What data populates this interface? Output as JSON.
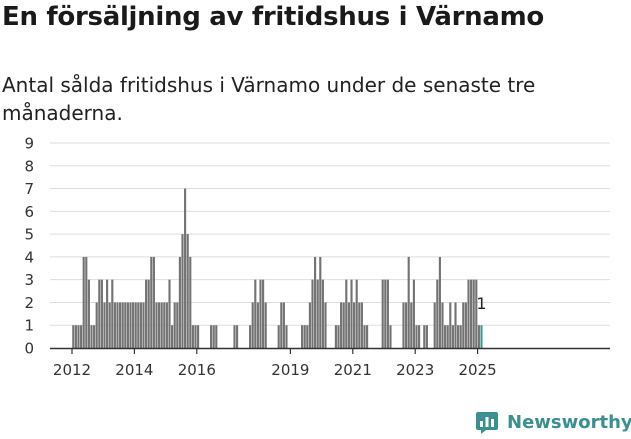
{
  "header": {
    "title": "En försäljning av fritidshus i Värnamo",
    "subtitle": "Antal sålda fritidshus i Värnamo under de senaste tre månaderna."
  },
  "brand": {
    "name": "Newsworthy",
    "logo_icon": "newsworthy-bar-chart-logo-icon"
  },
  "colors": {
    "bar": "#737373",
    "highlight": "#3a9b98",
    "grid": "#dddddd",
    "axis": "#333333",
    "brand": "#3a8f8f"
  },
  "chart_data": {
    "type": "bar",
    "title": "",
    "xlabel": "",
    "ylabel": "",
    "ylim": [
      0,
      9
    ],
    "y_ticks": [
      "0",
      "1",
      "2",
      "3",
      "4",
      "5",
      "6",
      "7",
      "8",
      "9"
    ],
    "x_ticks": [
      {
        "label": "2012",
        "date": "2012-01"
      },
      {
        "label": "2014",
        "date": "2014-01"
      },
      {
        "label": "2016",
        "date": "2016-01"
      },
      {
        "label": "2019",
        "date": "2019-01"
      },
      {
        "label": "2021",
        "date": "2021-01"
      },
      {
        "label": "2023",
        "date": "2023-01"
      },
      {
        "label": "2025",
        "date": "2025-01"
      }
    ],
    "grid": true,
    "x_start": "2012-01",
    "last_value_label": "1",
    "categories": [
      "2012-01",
      "2012-02",
      "2012-03",
      "2012-04",
      "2012-05",
      "2012-06",
      "2012-07",
      "2012-08",
      "2012-09",
      "2012-10",
      "2012-11",
      "2012-12",
      "2013-01",
      "2013-02",
      "2013-03",
      "2013-04",
      "2013-05",
      "2013-06",
      "2013-07",
      "2013-08",
      "2013-09",
      "2013-10",
      "2013-11",
      "2013-12",
      "2014-01",
      "2014-02",
      "2014-03",
      "2014-04",
      "2014-05",
      "2014-06",
      "2014-07",
      "2014-08",
      "2014-09",
      "2014-10",
      "2014-11",
      "2014-12",
      "2015-01",
      "2015-02",
      "2015-03",
      "2015-04",
      "2015-05",
      "2015-06",
      "2015-07",
      "2015-08",
      "2015-09",
      "2015-10",
      "2015-11",
      "2015-12",
      "2016-01",
      "2016-02",
      "2016-03",
      "2016-04",
      "2016-05",
      "2016-06",
      "2016-07",
      "2016-08",
      "2016-09",
      "2016-10",
      "2016-11",
      "2016-12",
      "2017-01",
      "2017-02",
      "2017-03",
      "2017-04",
      "2017-05",
      "2017-06",
      "2017-07",
      "2017-08",
      "2017-09",
      "2017-10",
      "2017-11",
      "2017-12",
      "2018-01",
      "2018-02",
      "2018-03",
      "2018-04",
      "2018-05",
      "2018-06",
      "2018-07",
      "2018-08",
      "2018-09",
      "2018-10",
      "2018-11",
      "2018-12",
      "2019-01",
      "2019-02",
      "2019-03",
      "2019-04",
      "2019-05",
      "2019-06",
      "2019-07",
      "2019-08",
      "2019-09",
      "2019-10",
      "2019-11",
      "2019-12",
      "2020-01",
      "2020-02",
      "2020-03",
      "2020-04",
      "2020-05",
      "2020-06",
      "2020-07",
      "2020-08",
      "2020-09",
      "2020-10",
      "2020-11",
      "2020-12",
      "2021-01",
      "2021-02",
      "2021-03",
      "2021-04",
      "2021-05",
      "2021-06",
      "2021-07",
      "2021-08",
      "2021-09",
      "2021-10",
      "2021-11",
      "2021-12",
      "2022-01",
      "2022-02",
      "2022-03",
      "2022-04",
      "2022-05",
      "2022-06",
      "2022-07",
      "2022-08",
      "2022-09",
      "2022-10",
      "2022-11",
      "2022-12",
      "2023-01",
      "2023-02",
      "2023-03",
      "2023-04",
      "2023-05",
      "2023-06",
      "2023-07",
      "2023-08",
      "2023-09",
      "2023-10",
      "2023-11",
      "2023-12",
      "2024-01",
      "2024-02",
      "2024-03",
      "2024-04",
      "2024-05",
      "2024-06",
      "2024-07",
      "2024-08",
      "2024-09",
      "2024-10",
      "2024-11",
      "2024-12",
      "2025-01",
      "2025-02"
    ],
    "series": [
      {
        "values": [
          1,
          1,
          1,
          1,
          4,
          4,
          3,
          1,
          1,
          2,
          3,
          3,
          2,
          3,
          2,
          3,
          2,
          2,
          2,
          2,
          2,
          2,
          2,
          2,
          2,
          2,
          2,
          2,
          3,
          3,
          4,
          4,
          2,
          2,
          2,
          2,
          2,
          3,
          1,
          2,
          2,
          4,
          5,
          7,
          5,
          4,
          1,
          1,
          1,
          0,
          0,
          0,
          0,
          1,
          1,
          1,
          0,
          0,
          0,
          0,
          0,
          0,
          1,
          1,
          0,
          0,
          0,
          0,
          1,
          2,
          3,
          2,
          3,
          3,
          2,
          0,
          0,
          0,
          0,
          1,
          2,
          2,
          1,
          0,
          0,
          0,
          0,
          0,
          1,
          1,
          1,
          2,
          3,
          4,
          3,
          4,
          3,
          2,
          0,
          0,
          0,
          1,
          1,
          2,
          2,
          3,
          2,
          3,
          2,
          3,
          2,
          2,
          1,
          1,
          0,
          0,
          0,
          0,
          0,
          3,
          3,
          3,
          1,
          0,
          0,
          0,
          0,
          2,
          2,
          4,
          2,
          3,
          1,
          1,
          0,
          1,
          1,
          0,
          0,
          2,
          3,
          4,
          2,
          1,
          1,
          2,
          1,
          2,
          1,
          1,
          2,
          2,
          3,
          3,
          3,
          3,
          1,
          1
        ]
      }
    ]
  }
}
